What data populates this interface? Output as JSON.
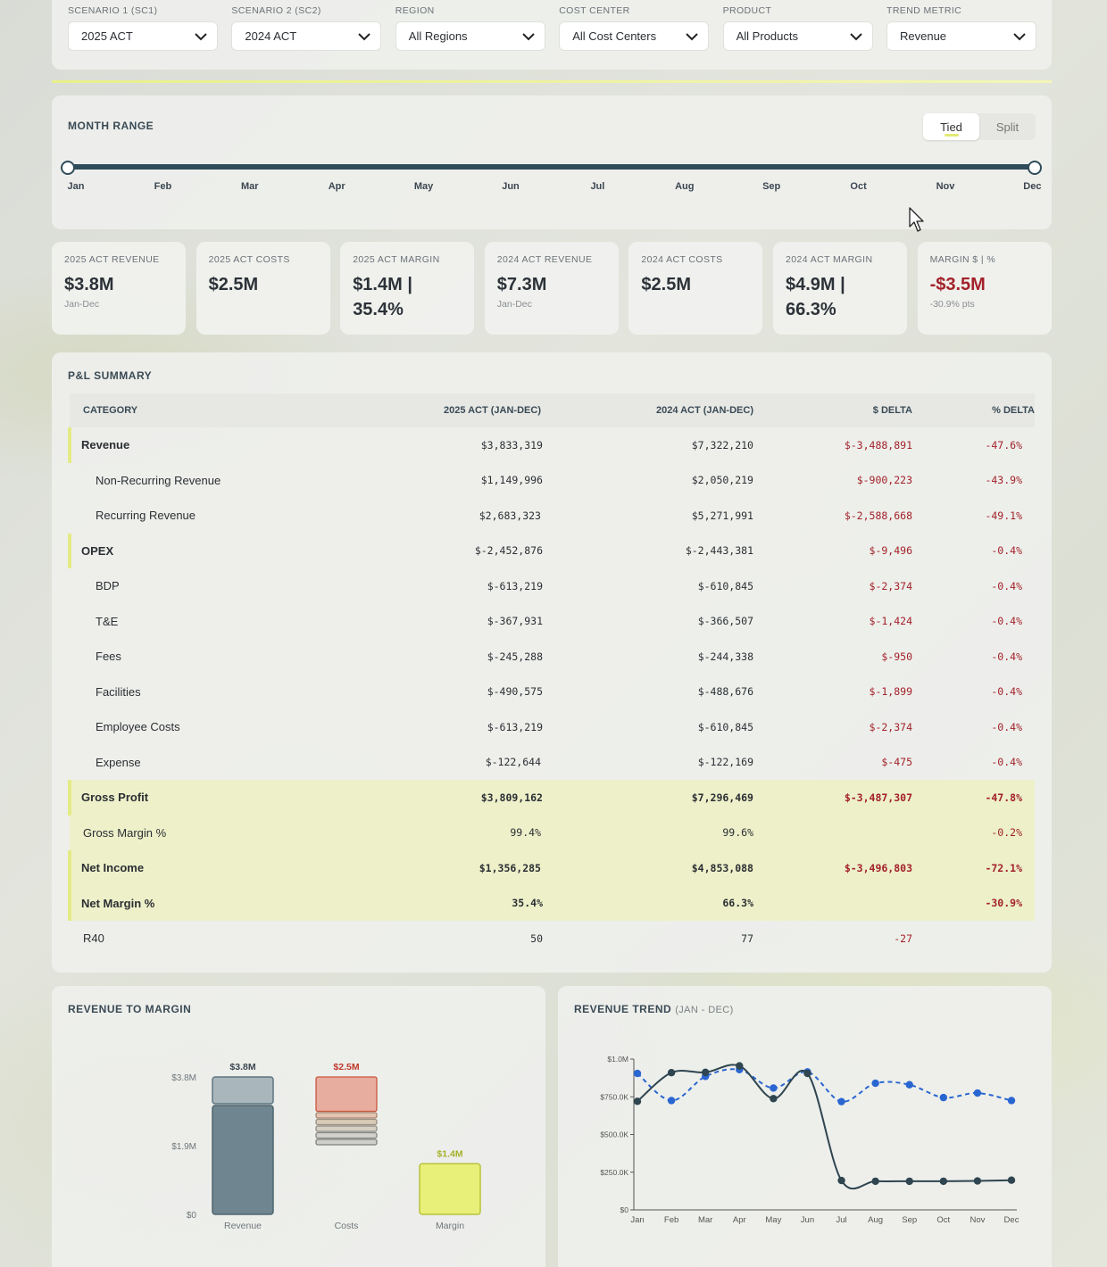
{
  "filters": [
    {
      "label": "SCENARIO 1 (SC1)",
      "value": "2025 ACT"
    },
    {
      "label": "SCENARIO 2 (SC2)",
      "value": "2024 ACT"
    },
    {
      "label": "REGION",
      "value": "All Regions"
    },
    {
      "label": "COST CENTER",
      "value": "All Cost Centers"
    },
    {
      "label": "PRODUCT",
      "value": "All Products"
    },
    {
      "label": "TREND METRIC",
      "value": "Revenue"
    }
  ],
  "month_range": {
    "title": "MONTH RANGE",
    "toggle": {
      "tied": "Tied",
      "split": "Split",
      "active": "Tied"
    },
    "months": [
      "Jan",
      "Feb",
      "Mar",
      "Apr",
      "May",
      "Jun",
      "Jul",
      "Aug",
      "Sep",
      "Oct",
      "Nov",
      "Dec"
    ],
    "start_month": "Jan",
    "end_month": "Dec"
  },
  "kpis": [
    {
      "label": "2025 ACT REVENUE",
      "value": "$3.8M",
      "sub": "Jan-Dec"
    },
    {
      "label": "2025 ACT COSTS",
      "value": "$2.5M",
      "sub": ""
    },
    {
      "label": "2025 ACT MARGIN",
      "value": "$1.4M | 35.4%",
      "sub": ""
    },
    {
      "label": "2024 ACT REVENUE",
      "value": "$7.3M",
      "sub": "Jan-Dec"
    },
    {
      "label": "2024 ACT COSTS",
      "value": "$2.5M",
      "sub": ""
    },
    {
      "label": "2024 ACT MARGIN",
      "value": "$4.9M | 66.3%",
      "sub": ""
    },
    {
      "label": "MARGIN $ | %",
      "value": "-$3.5M",
      "sub": "-30.9% pts"
    }
  ],
  "pl_summary": {
    "title": "P&L SUMMARY",
    "columns": [
      "CATEGORY",
      "2025 ACT (JAN-DEC)",
      "2024 ACT (JAN-DEC)",
      "$ DELTA",
      "% DELTA"
    ],
    "rows": [
      {
        "category": "Revenue",
        "sc1": "$3,833,319",
        "sc2": "$7,322,210",
        "delta": "$-3,488,891",
        "pct": "-47.6%",
        "style": "lead"
      },
      {
        "category": "Non-Recurring Revenue",
        "sc1": "$1,149,996",
        "sc2": "$2,050,219",
        "delta": "$-900,223",
        "pct": "-43.9%",
        "style": "indent"
      },
      {
        "category": "Recurring Revenue",
        "sc1": "$2,683,323",
        "sc2": "$5,271,991",
        "delta": "$-2,588,668",
        "pct": "-49.1%",
        "style": "indent"
      },
      {
        "category": "OPEX",
        "sc1": "$-2,452,876",
        "sc2": "$-2,443,381",
        "delta": "$-9,496",
        "pct": "-0.4%",
        "style": "lead"
      },
      {
        "category": "BDP",
        "sc1": "$-613,219",
        "sc2": "$-610,845",
        "delta": "$-2,374",
        "pct": "-0.4%",
        "style": "indent"
      },
      {
        "category": "T&E",
        "sc1": "$-367,931",
        "sc2": "$-366,507",
        "delta": "$-1,424",
        "pct": "-0.4%",
        "style": "indent"
      },
      {
        "category": "Fees",
        "sc1": "$-245,288",
        "sc2": "$-244,338",
        "delta": "$-950",
        "pct": "-0.4%",
        "style": "indent"
      },
      {
        "category": "Facilities",
        "sc1": "$-490,575",
        "sc2": "$-488,676",
        "delta": "$-1,899",
        "pct": "-0.4%",
        "style": "indent"
      },
      {
        "category": "Employee Costs",
        "sc1": "$-613,219",
        "sc2": "$-610,845",
        "delta": "$-2,374",
        "pct": "-0.4%",
        "style": "indent"
      },
      {
        "category": "Expense",
        "sc1": "$-122,644",
        "sc2": "$-122,169",
        "delta": "$-475",
        "pct": "-0.4%",
        "style": "indent"
      },
      {
        "category": "Gross Profit",
        "sc1": "$3,809,162",
        "sc2": "$7,296,469",
        "delta": "$-3,487,307",
        "pct": "-47.8%",
        "style": "lead-hi"
      },
      {
        "category": "Gross Margin %",
        "sc1": "99.4%",
        "sc2": "99.6%",
        "delta": "",
        "pct": "-0.2%",
        "style": "hi"
      },
      {
        "category": "Net Income",
        "sc1": "$1,356,285",
        "sc2": "$4,853,088",
        "delta": "$-3,496,803",
        "pct": "-72.1%",
        "style": "lead-hi"
      },
      {
        "category": "Net Margin %",
        "sc1": "35.4%",
        "sc2": "66.3%",
        "delta": "",
        "pct": "-30.9%",
        "style": "lead-hi"
      },
      {
        "category": "R40",
        "sc1": "50",
        "sc2": "77",
        "delta": "-27",
        "pct": "",
        "style": "plain"
      }
    ]
  },
  "revenue_to_margin": {
    "title": "REVENUE TO MARGIN",
    "chart_data": {
      "type": "bar",
      "categories": [
        "Revenue",
        "Costs",
        "Margin"
      ],
      "values": [
        3.8,
        2.5,
        1.4
      ],
      "value_labels": [
        "$3.8M",
        "$2.5M",
        "$1.4M"
      ],
      "y_ticks": [
        "$0",
        "$1.9M",
        "$3.8M"
      ],
      "ylim": [
        0,
        3.8
      ],
      "colors": {
        "Revenue": "#6f8690",
        "Costs": "#e5a495",
        "Margin": "#e9f07a"
      },
      "cost_segments": [
        0.613,
        0.368,
        0.245,
        0.491,
        0.613,
        0.123
      ]
    }
  },
  "revenue_trend": {
    "title": "REVENUE TREND",
    "subtitle": "(JAN - DEC)",
    "chart_data": {
      "type": "line",
      "x": [
        "Jan",
        "Feb",
        "Mar",
        "Apr",
        "May",
        "Jun",
        "Jul",
        "Aug",
        "Sep",
        "Oct",
        "Nov",
        "Dec"
      ],
      "y_ticks": [
        "$0",
        "$250.0K",
        "$500.0K",
        "$750.0K",
        "$1.0M"
      ],
      "ylim": [
        0,
        1000
      ],
      "series": [
        {
          "values": [
            720,
            910,
            912,
            955,
            738,
            905,
            195,
            190,
            190,
            190,
            192,
            197
          ],
          "color": "#2f4550",
          "style": "solid"
        },
        {
          "values": [
            905,
            725,
            885,
            930,
            808,
            915,
            718,
            840,
            830,
            745,
            775,
            725
          ],
          "color": "#2a66d1",
          "style": "dashed"
        }
      ]
    }
  }
}
